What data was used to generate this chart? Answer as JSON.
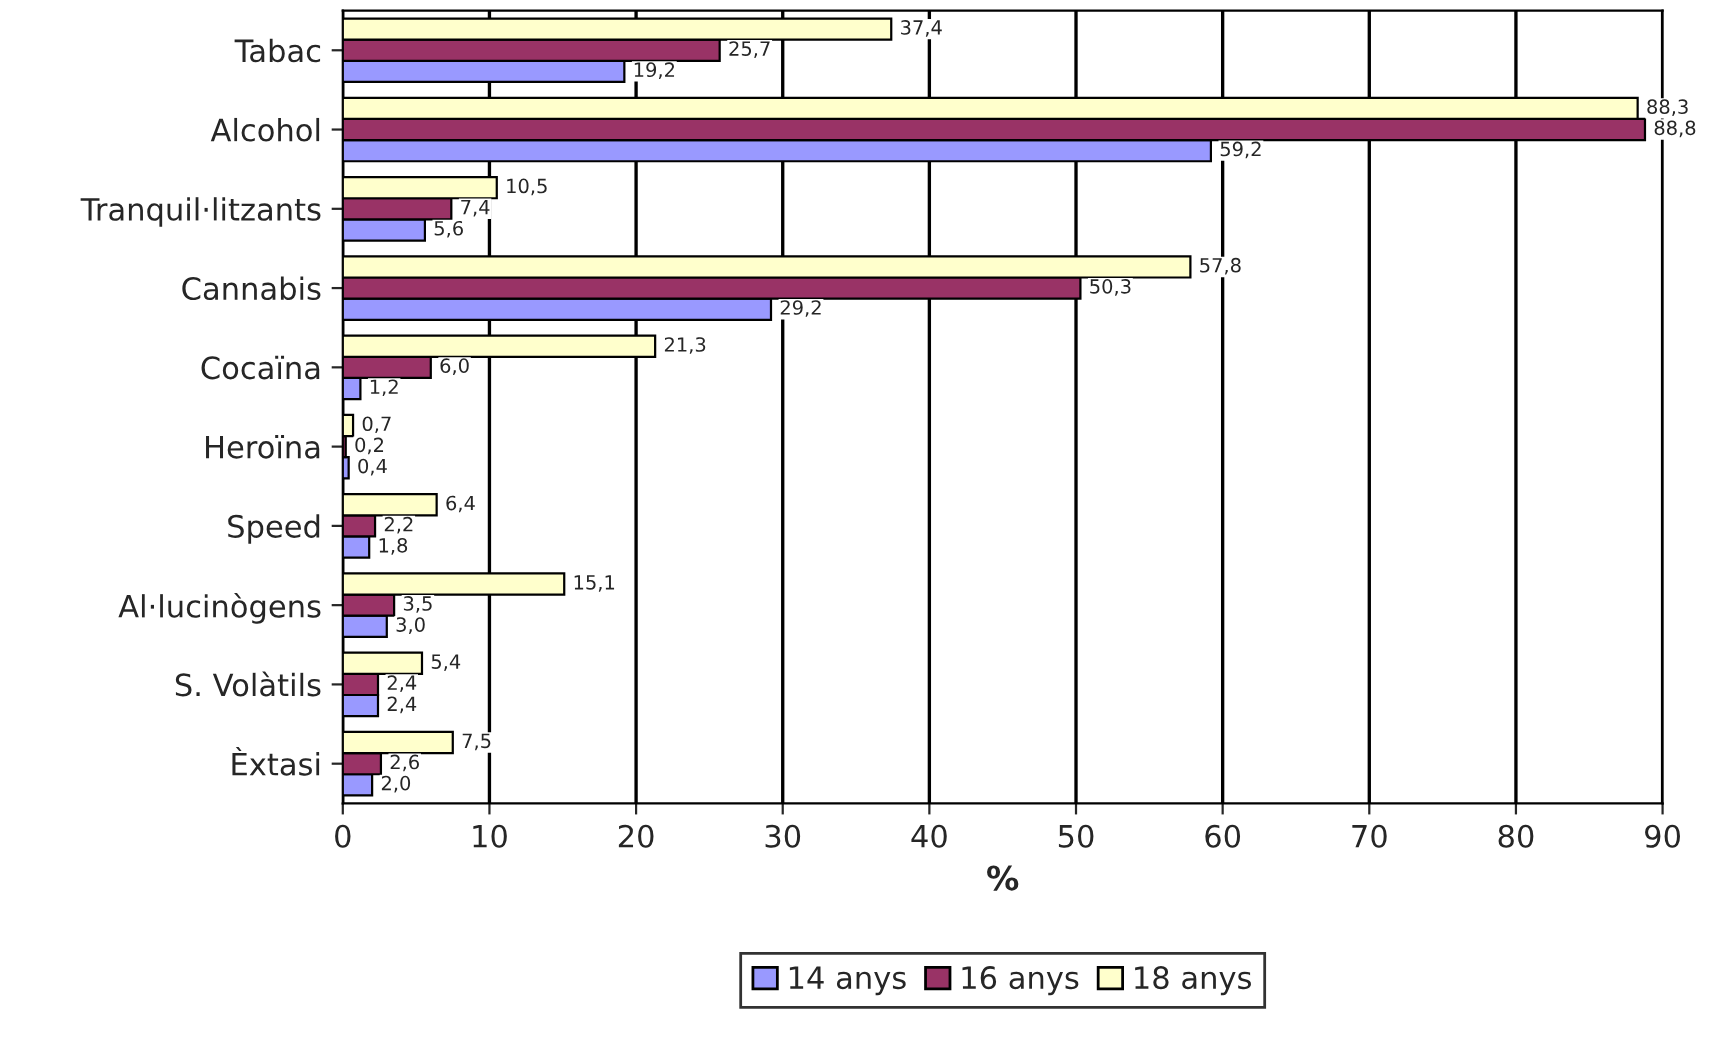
{
  "chart_data": {
    "type": "bar",
    "orientation": "horizontal",
    "xlabel": "%",
    "categories": [
      "Tabac",
      "Alcohol",
      "Tranquil·litzants",
      "Cannabis",
      "Cocaïna",
      "Heroïna",
      "Speed",
      "Al·lucinògens",
      "S. Volàtils",
      "Èxtasi"
    ],
    "series": [
      {
        "name": "14 anys",
        "color": "#9999ff",
        "values": [
          19.2,
          59.2,
          5.6,
          29.2,
          1.2,
          0.4,
          1.8,
          3.0,
          2.4,
          2.0
        ],
        "value_labels": [
          "19,2",
          "59,2",
          "5,6",
          "29,2",
          "1,2",
          "0,4",
          "1,8",
          "3,0",
          "2,4",
          "2,0"
        ]
      },
      {
        "name": "16 anys",
        "color": "#993366",
        "values": [
          25.7,
          88.8,
          7.4,
          50.3,
          6.0,
          0.2,
          2.2,
          3.5,
          2.4,
          2.6
        ],
        "value_labels": [
          "25,7",
          "88,8",
          "7,4",
          "50,3",
          "6,0",
          "0,2",
          "2,2",
          "3,5",
          "2,4",
          "2,6"
        ]
      },
      {
        "name": "18 anys",
        "color": "#ffffcc",
        "values": [
          37.4,
          88.3,
          10.5,
          57.8,
          21.3,
          0.7,
          6.4,
          15.1,
          5.4,
          7.5
        ],
        "value_labels": [
          "37,4",
          "88,3",
          "10,5",
          "57,8",
          "21,3",
          "0,7",
          "6,4",
          "15,1",
          "5,4",
          "7,5"
        ]
      }
    ],
    "xlim": [
      0,
      90
    ],
    "xticks": [
      0,
      10,
      20,
      30,
      40,
      50,
      60,
      70,
      80,
      90
    ],
    "grid": "x",
    "legend": "bottom"
  }
}
